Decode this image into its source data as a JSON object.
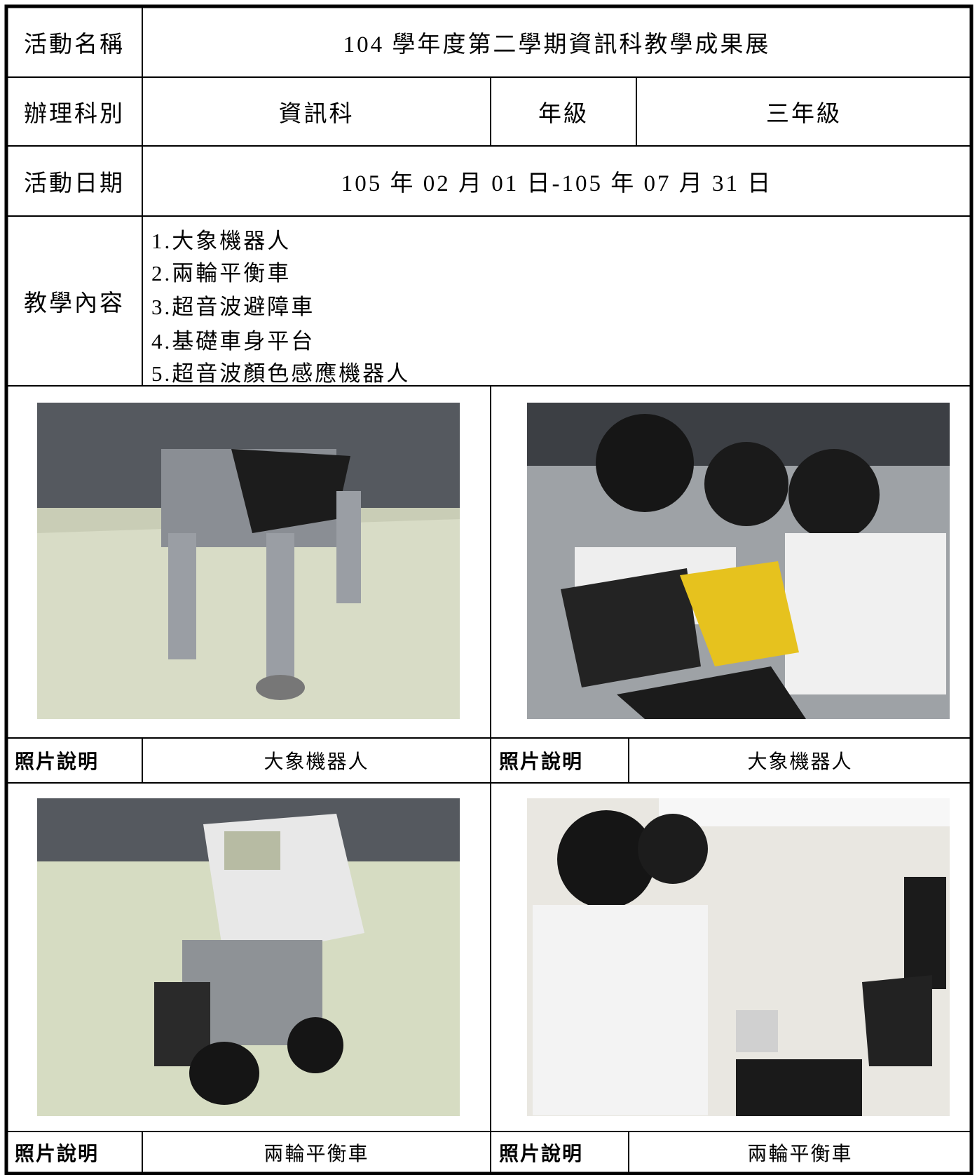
{
  "form": {
    "activity_name": {
      "label": "活動名稱",
      "value": "104 學年度第二學期資訊科教學成果展"
    },
    "department": {
      "label": "辦理科別",
      "value": "資訊科",
      "grade_label": "年級",
      "grade_value": "三年級"
    },
    "activity_date": {
      "label": "活動日期",
      "value": "105 年 02 月 01 日-105 年 07 月 31 日"
    },
    "teaching_content": {
      "label": "教學內容",
      "items": [
        "1.大象機器人",
        "2.兩輪平衡車",
        "3.超音波避障車",
        "4.基礎車身平台",
        "5.超音波顏色感應機器人"
      ]
    },
    "photos": [
      {
        "caption_label": "照片說明",
        "caption": "大象機器人"
      },
      {
        "caption_label": "照片說明",
        "caption": "大象機器人"
      },
      {
        "caption_label": "照片說明",
        "caption": "兩輪平衡車"
      },
      {
        "caption_label": "照片說明",
        "caption": "兩輪平衡車"
      }
    ]
  }
}
